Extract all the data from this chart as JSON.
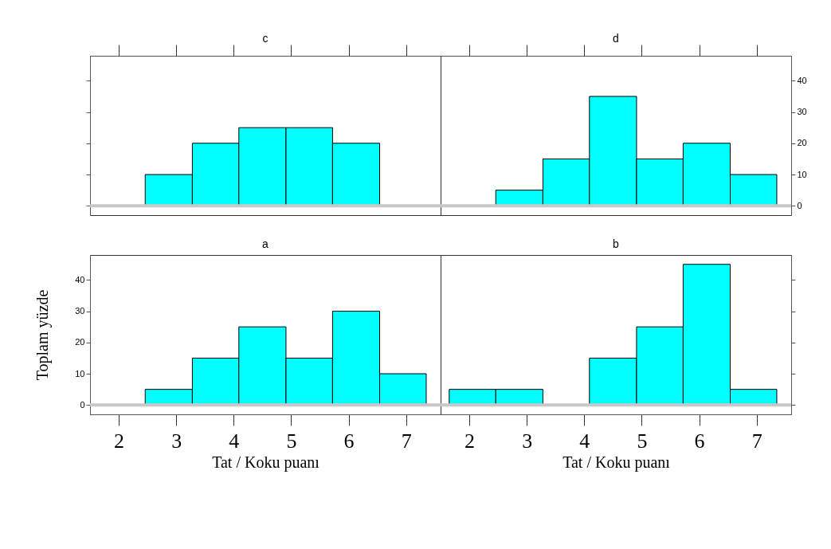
{
  "chart_data": [
    {
      "type": "histogram",
      "title": "c",
      "bins": [
        1.65,
        2.46,
        3.28,
        4.09,
        4.91,
        5.72,
        6.54,
        7.35
      ],
      "values": [
        0,
        10,
        20,
        25,
        25,
        20,
        0
      ],
      "color": "#00ffff",
      "xlim": [
        1.5,
        7.6
      ],
      "ylim": [
        -3,
        48
      ],
      "xticks": [
        2,
        3,
        4,
        5,
        6,
        7
      ],
      "yticks": [
        0,
        10,
        20,
        30,
        40
      ],
      "tick_labels": false,
      "ref_lines": [
        {
          "axis": "y",
          "value": 0,
          "color": "#c8c8c8"
        }
      ]
    },
    {
      "type": "histogram",
      "title": "d",
      "bins": [
        1.65,
        2.46,
        3.28,
        4.09,
        4.91,
        5.72,
        6.54,
        7.35
      ],
      "values": [
        0,
        5,
        15,
        35,
        15,
        20,
        10
      ],
      "color": "#00ffff",
      "xlim": [
        1.5,
        7.6
      ],
      "ylim": [
        -3,
        48
      ],
      "xticks": [
        2,
        3,
        4,
        5,
        6,
        7
      ],
      "yticks": [
        0,
        10,
        20,
        30,
        40
      ],
      "tick_labels": "y",
      "ref_lines": [
        {
          "axis": "y",
          "value": 0,
          "color": "#c8c8c8"
        }
      ]
    },
    {
      "type": "histogram",
      "title": "a",
      "ylabel": "Toplam yüzde",
      "xlabel": "Tat / Koku puanı",
      "bins": [
        1.65,
        2.46,
        3.28,
        4.09,
        4.91,
        5.72,
        6.54,
        7.35
      ],
      "values": [
        0,
        5,
        15,
        25,
        15,
        30,
        10
      ],
      "color": "#00ffff",
      "xlim": [
        1.5,
        7.6
      ],
      "ylim": [
        -3,
        48
      ],
      "xticks": [
        2,
        3,
        4,
        5,
        6,
        7
      ],
      "yticks": [
        0,
        10,
        20,
        30,
        40
      ],
      "ref_lines": [
        {
          "axis": "y",
          "value": 0,
          "color": "#c8c8c8"
        }
      ]
    },
    {
      "type": "histogram",
      "title": "b",
      "xlabel": "Tat / Koku puanı",
      "bins": [
        1.65,
        2.46,
        3.28,
        4.09,
        4.91,
        5.72,
        6.54,
        7.35
      ],
      "values": [
        5,
        5,
        0,
        15,
        25,
        45,
        5
      ],
      "color": "#00ffff",
      "xlim": [
        1.5,
        7.6
      ],
      "ylim": [
        -3,
        48
      ],
      "xticks": [
        2,
        3,
        4,
        5,
        6,
        7
      ],
      "yticks": [
        0,
        10,
        20,
        30,
        40
      ],
      "tick_labels": "x",
      "ref_lines": [
        {
          "axis": "y",
          "value": 0,
          "color": "#c8c8c8"
        }
      ]
    }
  ]
}
